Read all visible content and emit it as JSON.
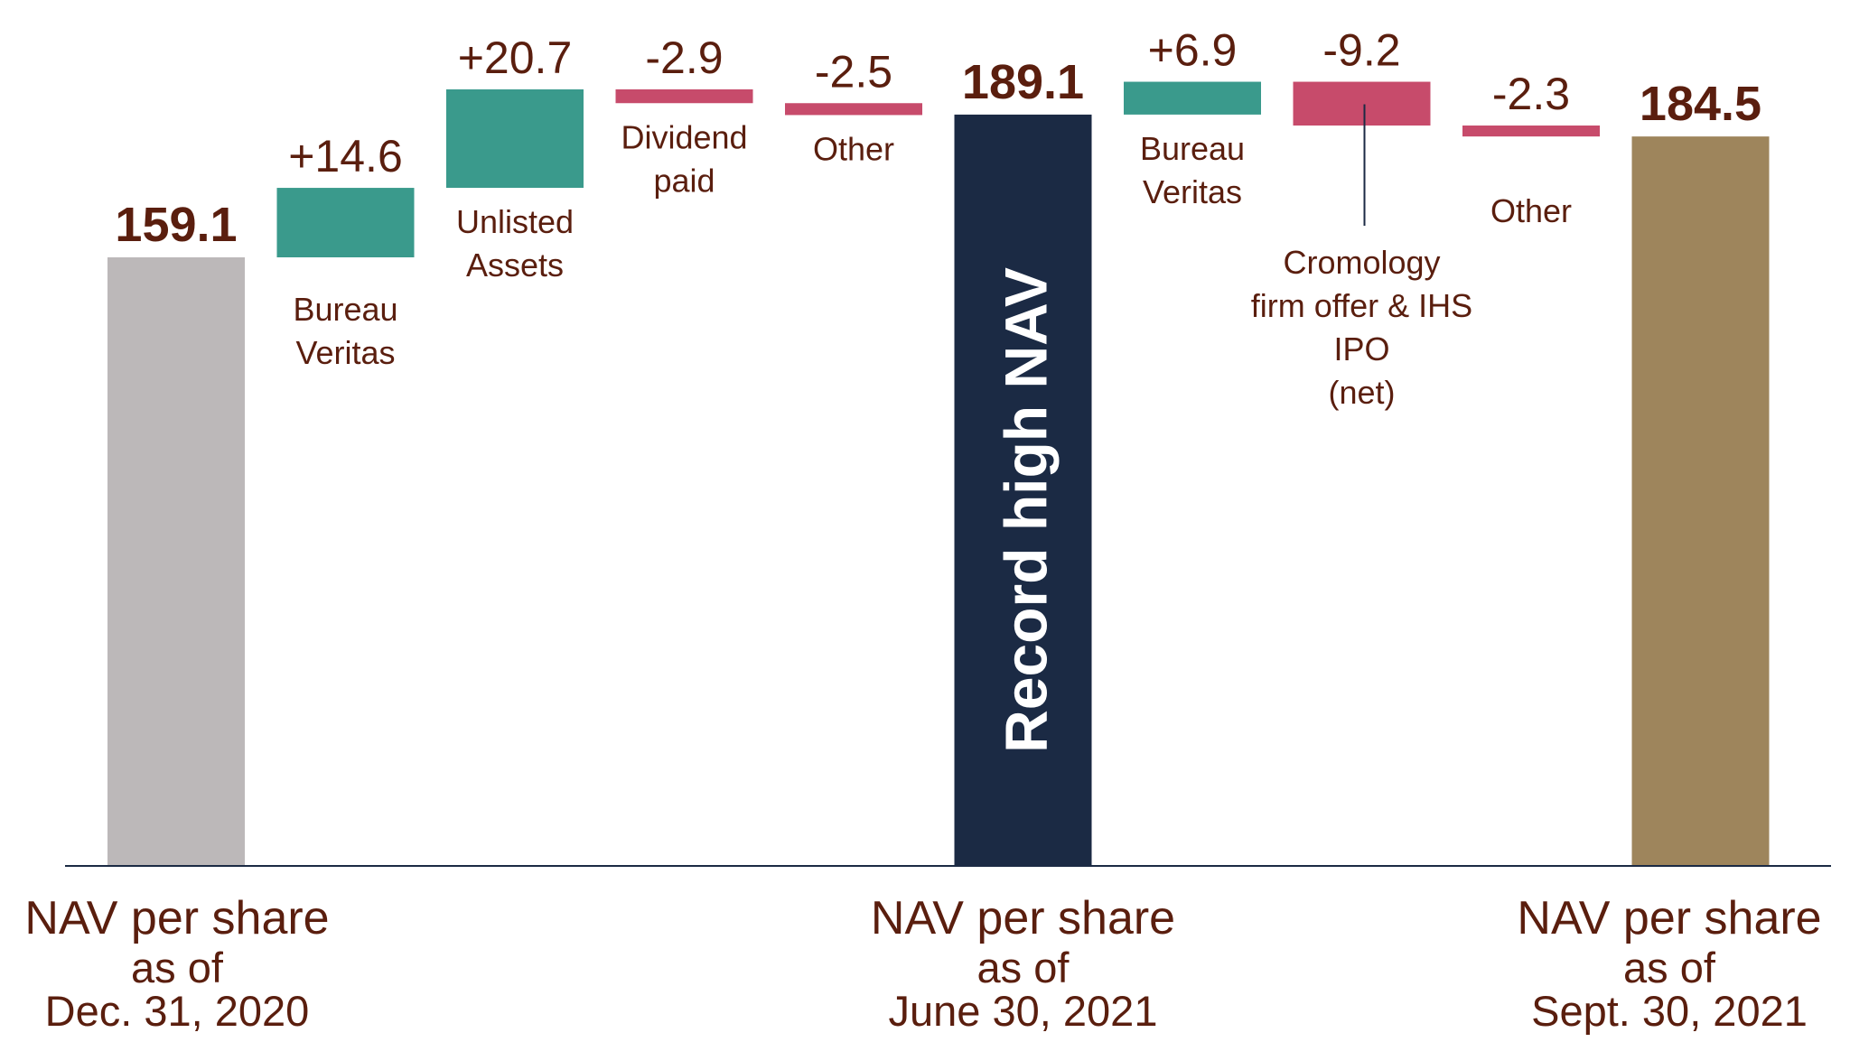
{
  "chart_data": {
    "type": "waterfall",
    "title": "",
    "xlabel": "",
    "ylabel": "",
    "grid": false,
    "legend": "none",
    "colors": {
      "start_total": "#bcb8b9",
      "increase": "#3a9a8c",
      "decrease": "#c74b6b",
      "mid_total": "#1b2a44",
      "end_total": "#9e855c",
      "text": "#5a1e0e",
      "axis": "#1b2a44"
    },
    "steps": [
      {
        "kind": "total",
        "value": 159.1,
        "label": "159.1",
        "category": [],
        "color_key": "start_total"
      },
      {
        "kind": "delta",
        "value": 14.6,
        "label": "+14.6",
        "category": [
          "Bureau",
          "Veritas"
        ],
        "color_key": "increase"
      },
      {
        "kind": "delta",
        "value": 20.7,
        "label": "+20.7",
        "category": [
          "Unlisted",
          "Assets"
        ],
        "color_key": "increase"
      },
      {
        "kind": "delta",
        "value": -2.9,
        "label": "-2.9",
        "category": [
          "Dividend",
          "paid"
        ],
        "color_key": "decrease"
      },
      {
        "kind": "delta",
        "value": -2.5,
        "label": "-2.5",
        "category": [
          "Other"
        ],
        "color_key": "decrease"
      },
      {
        "kind": "total",
        "value": 189.1,
        "label": "189.1",
        "category": [],
        "color_key": "mid_total"
      },
      {
        "kind": "delta",
        "value": 6.9,
        "label": "+6.9",
        "category": [
          "Bureau",
          "Veritas"
        ],
        "color_key": "increase"
      },
      {
        "kind": "delta",
        "value": -9.2,
        "label": "-9.2",
        "category": [
          "Cromology",
          "firm offer & IHS",
          "IPO",
          "(net)"
        ],
        "color_key": "decrease"
      },
      {
        "kind": "delta",
        "value": -2.3,
        "label": "-2.3",
        "category": [
          "Other"
        ],
        "color_key": "decrease"
      },
      {
        "kind": "total",
        "value": 184.5,
        "label": "184.5",
        "category": [],
        "color_key": "end_total"
      }
    ],
    "axis_labels": [
      {
        "step": 0,
        "lines": [
          "NAV per share",
          "as of",
          "Dec. 31, 2020"
        ]
      },
      {
        "step": 5,
        "lines": [
          "NAV per share",
          "as of",
          "June 30, 2021"
        ]
      },
      {
        "step": 9,
        "lines": [
          "NAV per share",
          "as of",
          "Sept. 30, 2021"
        ]
      }
    ],
    "annotation": {
      "step": 5,
      "text": "Record high NAV"
    }
  }
}
